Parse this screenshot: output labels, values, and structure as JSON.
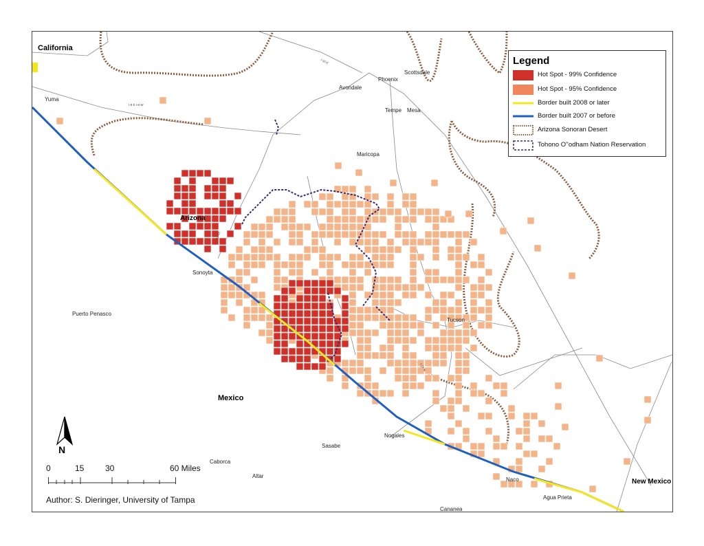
{
  "legend": {
    "title": "Legend",
    "items": [
      {
        "label": "Hot Spot - 99% Confidence",
        "color": "#d0302a",
        "symbol": "fill"
      },
      {
        "label": "Hot Spot - 95% Confidence",
        "color": "#f0865c",
        "symbol": "fill"
      },
      {
        "label": "Border built 2008 or later",
        "color": "#f5e61e",
        "symbol": "line"
      },
      {
        "label": "Border built 2007 or before",
        "color": "#1f5fbf",
        "symbol": "line"
      },
      {
        "label": "Arizona Sonoran Desert",
        "color": "#8a5a3c",
        "symbol": "dotted-box"
      },
      {
        "label": "Tohono O''odham Nation Reservation",
        "color": "#3a2a6e",
        "symbol": "dashed-box"
      }
    ]
  },
  "regions": {
    "california": "California",
    "arizona": "Arizona",
    "mexico": "Mexico",
    "new_mexico": "New Mexico"
  },
  "places": {
    "yuma": "Yuma",
    "phoenix": "Phoenix",
    "scottsdale": "Scottsdale",
    "avondale": "Avondale",
    "tempe": "Tempe",
    "mesa": "Mesa",
    "maricopa": "Maricopa",
    "sonoyta": "Sonoyta",
    "puerto_penasco": "Puerto Penasco",
    "tucson": "Tucson",
    "nogales": "Nogales",
    "sasabe": "Sasabe",
    "caborca": "Caborca",
    "altar": "Altar",
    "naco": "Naco",
    "agua_prieta": "Agua Prieta",
    "cananea": "Cananea"
  },
  "roads": {
    "i8": "I-8 E I-8 W",
    "i10": "I-10 E",
    "i19": "I-19 N",
    "az85": "AZ-85"
  },
  "north_arrow": {
    "label": "N"
  },
  "scale_bar": {
    "ticks": [
      "0",
      "15",
      "30",
      "60 Miles"
    ]
  },
  "author": "Author: S. Dieringer, University of Tampa",
  "colors": {
    "hot99": "#d0302a",
    "hot95": "#f0865c",
    "hot95_light": "#f4b489",
    "border_new": "#f5e61e",
    "border_old": "#1f5fbf",
    "desert": "#8a5a3c",
    "reservation": "#3a2a6e"
  }
}
